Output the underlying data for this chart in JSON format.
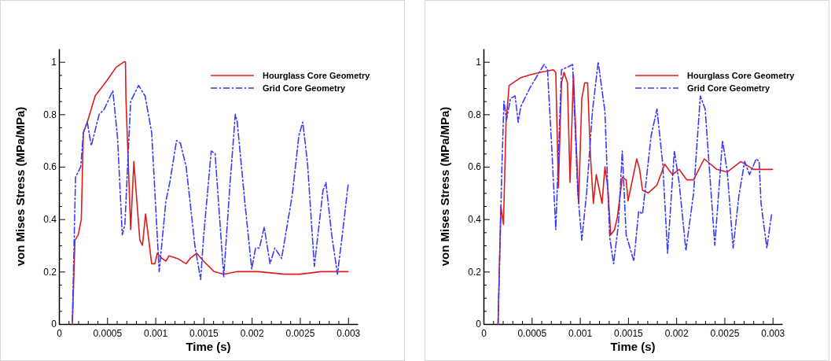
{
  "chart_data": [
    {
      "type": "line",
      "xlabel": "Time (s)",
      "ylabel": "von Mises Stress (MPa/MPa)",
      "xlim": [
        0,
        0.0031
      ],
      "ylim": [
        0,
        1.05
      ],
      "xticks": [
        0,
        {
          "value": 0.0001,
          "label": null
        },
        {
          "value": 0.0002,
          "label": null
        },
        {
          "value": 0.0003,
          "label": null
        },
        {
          "value": 0.0004,
          "label": null
        },
        0.0005,
        {
          "value": 0.0006,
          "label": null
        },
        {
          "value": 0.0007,
          "label": null
        },
        {
          "value": 0.0008,
          "label": null
        },
        {
          "value": 0.0009,
          "label": null
        },
        0.001,
        {
          "value": 0.0011,
          "label": null
        },
        {
          "value": 0.0012,
          "label": null
        },
        {
          "value": 0.0013,
          "label": null
        },
        {
          "value": 0.0014,
          "label": null
        },
        0.0015,
        {
          "value": 0.0016,
          "label": null
        },
        {
          "value": 0.0017,
          "label": null
        },
        {
          "value": 0.0018,
          "label": null
        },
        {
          "value": 0.0019,
          "label": null
        },
        0.002,
        {
          "value": 0.0021,
          "label": null
        },
        {
          "value": 0.0022,
          "label": null
        },
        {
          "value": 0.0023,
          "label": null
        },
        {
          "value": 0.0024,
          "label": null
        },
        0.0025,
        {
          "value": 0.0026,
          "label": null
        },
        {
          "value": 0.0027,
          "label": null
        },
        {
          "value": 0.0028,
          "label": null
        },
        {
          "value": 0.0029,
          "label": null
        },
        0.003
      ],
      "yticks": [
        0,
        {
          "value": 0.05,
          "label": null
        },
        {
          "value": 0.1,
          "label": null
        },
        {
          "value": 0.15,
          "label": null
        },
        0.2,
        {
          "value": 0.25,
          "label": null
        },
        {
          "value": 0.3,
          "label": null
        },
        {
          "value": 0.35,
          "label": null
        },
        0.4,
        {
          "value": 0.45,
          "label": null
        },
        {
          "value": 0.5,
          "label": null
        },
        {
          "value": 0.55,
          "label": null
        },
        0.6,
        {
          "value": 0.65,
          "label": null
        },
        {
          "value": 0.7,
          "label": null
        },
        {
          "value": 0.75,
          "label": null
        },
        0.8,
        {
          "value": 0.85,
          "label": null
        },
        {
          "value": 0.9,
          "label": null
        },
        {
          "value": 0.95,
          "label": null
        },
        1
      ],
      "grid": false,
      "legend": "top right",
      "marker": "none",
      "series": [
        {
          "name": "Hourglass Core Geometry",
          "color": "#dd1c1c",
          "line_style": "solid",
          "x": [
            0.000139,
            0.000166,
            0.0002,
            0.000232,
            0.000253,
            0.000294,
            0.000376,
            0.0005,
            0.000594,
            0.000676,
            0.00069,
            0.000695,
            0.000744,
            0.000777,
            0.000839,
            0.000866,
            0.000899,
            0.000962,
            0.000995,
            0.00102,
            0.00107,
            0.00111,
            0.00114,
            0.00123,
            0.00132,
            0.00136,
            0.00143,
            0.0015,
            0.00161,
            0.00171,
            0.00185,
            0.00207,
            0.00234,
            0.0025,
            0.00272,
            0.003
          ],
          "values": [
            0,
            0.32,
            0.34,
            0.4,
            0.73,
            0.77,
            0.87,
            0.93,
            0.98,
            1,
            1,
            0.86,
            0.36,
            0.62,
            0.32,
            0.3,
            0.42,
            0.23,
            0.23,
            0.27,
            0.25,
            0.24,
            0.26,
            0.25,
            0.23,
            0.25,
            0.27,
            0.24,
            0.2,
            0.19,
            0.2,
            0.2,
            0.19,
            0.19,
            0.2,
            0.2
          ]
        },
        {
          "name": "Grid Core Geometry",
          "color": "#3b3bf5",
          "line_style": "dashdot",
          "x": [
            0.000139,
            0.000172,
            0.000226,
            0.000253,
            0.000294,
            0.000335,
            0.000417,
            0.00047,
            0.000559,
            0.000608,
            0.000657,
            0.000684,
            0.000744,
            0.000826,
            0.000894,
            0.000962,
            0.00104,
            0.00111,
            0.00115,
            0.00122,
            0.00126,
            0.00132,
            0.00141,
            0.00147,
            0.0015,
            0.00158,
            0.00162,
            0.00171,
            0.00177,
            0.00183,
            0.00185,
            0.00193,
            0.002,
            0.00204,
            0.00208,
            0.00213,
            0.00219,
            0.00224,
            0.00231,
            0.00242,
            0.00249,
            0.00253,
            0.00258,
            0.00265,
            0.00274,
            0.00277,
            0.00283,
            0.00289,
            0.00294,
            0.003
          ],
          "values": [
            0.01,
            0.56,
            0.6,
            0.73,
            0.77,
            0.68,
            0.8,
            0.82,
            0.89,
            0.71,
            0.34,
            0.38,
            0.85,
            0.91,
            0.87,
            0.73,
            0.2,
            0.47,
            0.54,
            0.7,
            0.69,
            0.6,
            0.3,
            0.17,
            0.33,
            0.66,
            0.65,
            0.18,
            0.51,
            0.8,
            0.77,
            0.46,
            0.21,
            0.29,
            0.29,
            0.37,
            0.23,
            0.29,
            0.25,
            0.49,
            0.72,
            0.77,
            0.61,
            0.22,
            0.51,
            0.54,
            0.34,
            0.19,
            0.34,
            0.53
          ]
        }
      ]
    },
    {
      "type": "line",
      "xlabel": "Time (s)",
      "ylabel": "von Mises Stress (MPa/MPa)",
      "xlim": [
        0,
        0.0031
      ],
      "ylim": [
        0,
        1.05
      ],
      "xticks": [
        0,
        {
          "value": 0.0001,
          "label": null
        },
        {
          "value": 0.0002,
          "label": null
        },
        {
          "value": 0.0003,
          "label": null
        },
        {
          "value": 0.0004,
          "label": null
        },
        0.0005,
        {
          "value": 0.0006,
          "label": null
        },
        {
          "value": 0.0007,
          "label": null
        },
        {
          "value": 0.0008,
          "label": null
        },
        {
          "value": 0.0009,
          "label": null
        },
        0.001,
        {
          "value": 0.0011,
          "label": null
        },
        {
          "value": 0.0012,
          "label": null
        },
        {
          "value": 0.0013,
          "label": null
        },
        {
          "value": 0.0014,
          "label": null
        },
        0.0015,
        {
          "value": 0.0016,
          "label": null
        },
        {
          "value": 0.0017,
          "label": null
        },
        {
          "value": 0.0018,
          "label": null
        },
        {
          "value": 0.0019,
          "label": null
        },
        0.002,
        {
          "value": 0.0021,
          "label": null
        },
        {
          "value": 0.0022,
          "label": null
        },
        {
          "value": 0.0023,
          "label": null
        },
        {
          "value": 0.0024,
          "label": null
        },
        0.0025,
        {
          "value": 0.0026,
          "label": null
        },
        {
          "value": 0.0027,
          "label": null
        },
        {
          "value": 0.0028,
          "label": null
        },
        {
          "value": 0.0029,
          "label": null
        },
        0.003
      ],
      "yticks": [
        0,
        {
          "value": 0.05,
          "label": null
        },
        {
          "value": 0.1,
          "label": null
        },
        {
          "value": 0.15,
          "label": null
        },
        0.2,
        {
          "value": 0.25,
          "label": null
        },
        {
          "value": 0.3,
          "label": null
        },
        {
          "value": 0.35,
          "label": null
        },
        0.4,
        {
          "value": 0.45,
          "label": null
        },
        {
          "value": 0.5,
          "label": null
        },
        {
          "value": 0.55,
          "label": null
        },
        0.6,
        {
          "value": 0.65,
          "label": null
        },
        {
          "value": 0.7,
          "label": null
        },
        {
          "value": 0.75,
          "label": null
        },
        0.8,
        {
          "value": 0.85,
          "label": null
        },
        {
          "value": 0.9,
          "label": null
        },
        {
          "value": 0.95,
          "label": null
        },
        1
      ],
      "grid": false,
      "legend": "top right",
      "marker": "none",
      "series": [
        {
          "name": "Hourglass Core Geometry",
          "color": "#dd1c1c",
          "line_style": "solid",
          "x": [
            0.000151,
            0.00018,
            0.000207,
            0.000234,
            0.000266,
            0.000387,
            0.000481,
            0.000589,
            0.000723,
            0.00075,
            0.000777,
            0.000809,
            0.000836,
            0.000871,
            0.000898,
            0.000933,
            0.000987,
            0.00102,
            0.00105,
            0.00108,
            0.00111,
            0.00114,
            0.00117,
            0.00123,
            0.00126,
            0.00129,
            0.00132,
            0.00136,
            0.00139,
            0.00144,
            0.00148,
            0.0015,
            0.00159,
            0.00162,
            0.00165,
            0.00171,
            0.0018,
            0.00188,
            0.00196,
            0.00203,
            0.00211,
            0.00218,
            0.00229,
            0.00242,
            0.00253,
            0.00267,
            0.0028,
            0.003
          ],
          "values": [
            0,
            0.45,
            0.38,
            0.77,
            0.91,
            0.94,
            0.95,
            0.96,
            0.97,
            0.96,
            0.52,
            0.92,
            0.96,
            0.92,
            0.54,
            0.95,
            0.46,
            0.86,
            0.92,
            0.92,
            0.64,
            0.46,
            0.57,
            0.46,
            0.6,
            0.52,
            0.34,
            0.36,
            0.41,
            0.56,
            0.55,
            0.47,
            0.63,
            0.59,
            0.51,
            0.5,
            0.53,
            0.61,
            0.57,
            0.59,
            0.55,
            0.55,
            0.63,
            0.59,
            0.58,
            0.62,
            0.59,
            0.59
          ]
        },
        {
          "name": "Grid Core Geometry",
          "color": "#3b3bf5",
          "line_style": "dashdot",
          "x": [
            0.000151,
            0.000191,
            0.000212,
            0.000239,
            0.00028,
            0.000328,
            0.00036,
            0.000387,
            0.000481,
            0.000562,
            0.000629,
            0.000664,
            0.00071,
            0.00075,
            0.000809,
            0.000871,
            0.000925,
            0.000978,
            0.00102,
            0.00107,
            0.00113,
            0.00119,
            0.00126,
            0.00129,
            0.00131,
            0.00135,
            0.0014,
            0.00144,
            0.00148,
            0.00156,
            0.00161,
            0.00165,
            0.00174,
            0.0018,
            0.00186,
            0.00191,
            0.00198,
            0.00203,
            0.0021,
            0.00218,
            0.00225,
            0.0023,
            0.0024,
            0.00248,
            0.00253,
            0.00259,
            0.00265,
            0.00271,
            0.00276,
            0.00283,
            0.00286,
            0.00288,
            0.00294,
            0.00299
          ],
          "values": [
            0,
            0.6,
            0.85,
            0.78,
            0.86,
            0.87,
            0.77,
            0.83,
            0.9,
            0.95,
            0.99,
            0.97,
            0.66,
            0.36,
            0.97,
            0.98,
            0.99,
            0.5,
            0.32,
            0.5,
            0.81,
            1,
            0.81,
            0.51,
            0.33,
            0.23,
            0.38,
            0.66,
            0.34,
            0.24,
            0.43,
            0.42,
            0.72,
            0.82,
            0.61,
            0.27,
            0.66,
            0.54,
            0.28,
            0.5,
            0.87,
            0.82,
            0.3,
            0.7,
            0.58,
            0.29,
            0.49,
            0.62,
            0.57,
            0.63,
            0.62,
            0.46,
            0.29,
            0.42
          ]
        }
      ]
    }
  ]
}
